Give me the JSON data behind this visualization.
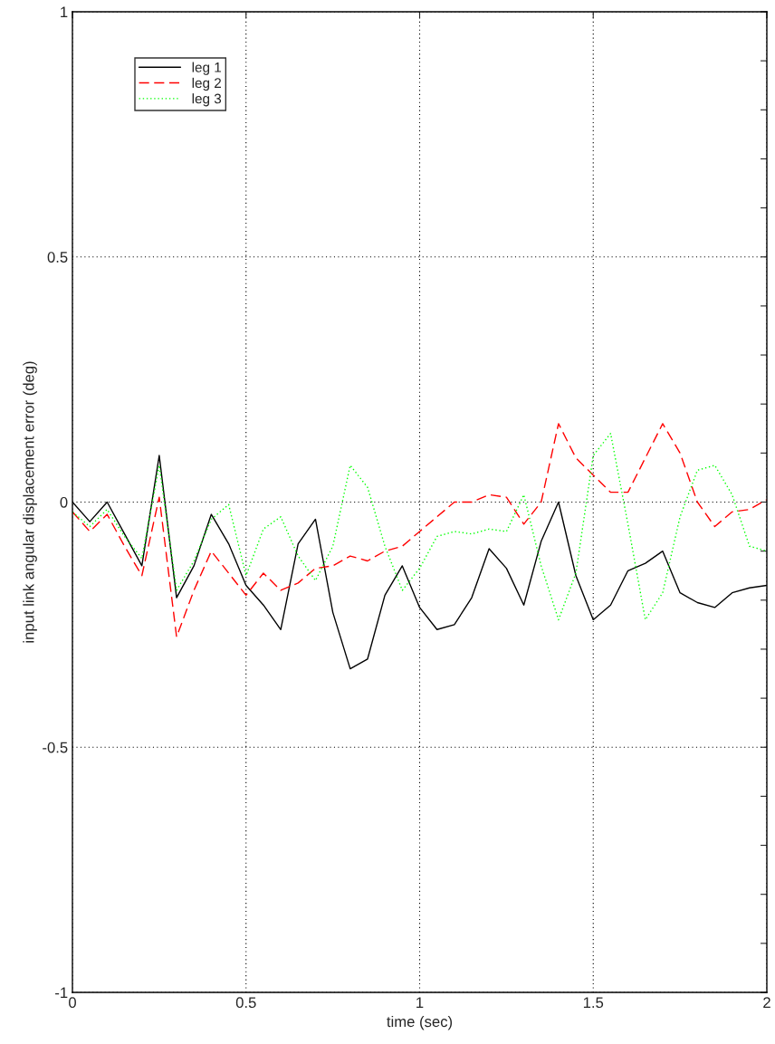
{
  "chart_data": {
    "type": "line",
    "xlabel": "time (sec)",
    "ylabel": "input link angular displacement error (deg)",
    "x": [
      0,
      0.05,
      0.1,
      0.15,
      0.2,
      0.25,
      0.3,
      0.35,
      0.4,
      0.45,
      0.5,
      0.55,
      0.6,
      0.65,
      0.7,
      0.75,
      0.8,
      0.85,
      0.9,
      0.95,
      1.0,
      1.05,
      1.1,
      1.15,
      1.2,
      1.25,
      1.3,
      1.35,
      1.4,
      1.45,
      1.5,
      1.55,
      1.6,
      1.65,
      1.7,
      1.75,
      1.8,
      1.85,
      1.9,
      1.95,
      2.0
    ],
    "series": [
      {
        "name": "leg 1",
        "color": "#000000",
        "line_style": "solid",
        "values": [
          0,
          -0.04,
          0.0,
          -0.065,
          -0.13,
          0.095,
          -0.195,
          -0.13,
          -0.025,
          -0.085,
          -0.17,
          -0.21,
          -0.26,
          -0.085,
          -0.035,
          -0.225,
          -0.34,
          -0.32,
          -0.19,
          -0.13,
          -0.215,
          -0.26,
          -0.25,
          -0.195,
          -0.095,
          -0.135,
          -0.21,
          -0.08,
          0.0,
          -0.15,
          -0.24,
          -0.21,
          -0.14,
          -0.125,
          -0.1,
          -0.185,
          -0.205,
          -0.215,
          -0.185,
          -0.175,
          -0.17
        ]
      },
      {
        "name": "leg 2",
        "color": "#ff0000",
        "line_style": "dashed",
        "values": [
          -0.02,
          -0.06,
          -0.025,
          -0.09,
          -0.15,
          0.01,
          -0.275,
          -0.18,
          -0.1,
          -0.145,
          -0.19,
          -0.145,
          -0.18,
          -0.165,
          -0.135,
          -0.13,
          -0.11,
          -0.12,
          -0.1,
          -0.09,
          -0.06,
          -0.03,
          0.0,
          0.0,
          0.015,
          0.01,
          -0.045,
          0.0,
          0.16,
          0.09,
          0.055,
          0.02,
          0.02,
          0.09,
          0.16,
          0.1,
          0.0,
          -0.05,
          -0.02,
          -0.015,
          0.005
        ]
      },
      {
        "name": "leg 3",
        "color": "#00ff00",
        "line_style": "dotted",
        "values": [
          -0.02,
          -0.05,
          -0.015,
          -0.07,
          -0.115,
          0.075,
          -0.18,
          -0.12,
          -0.035,
          -0.005,
          -0.15,
          -0.055,
          -0.03,
          -0.11,
          -0.16,
          -0.09,
          0.075,
          0.03,
          -0.09,
          -0.18,
          -0.135,
          -0.07,
          -0.06,
          -0.065,
          -0.055,
          -0.06,
          0.015,
          -0.13,
          -0.24,
          -0.145,
          0.095,
          0.14,
          -0.045,
          -0.24,
          -0.185,
          -0.03,
          0.065,
          0.075,
          0.015,
          -0.09,
          -0.1
        ]
      }
    ],
    "xlim": [
      0,
      2
    ],
    "xticks": [
      0,
      0.5,
      1,
      1.5,
      2
    ],
    "ylim": [
      -1,
      1
    ],
    "yticks": [
      -1,
      {
        "value": -0.9,
        "label": null
      },
      {
        "value": -0.8,
        "label": null
      },
      {
        "value": -0.7,
        "label": null
      },
      {
        "value": -0.6,
        "label": null
      },
      -0.5,
      {
        "value": -0.4,
        "label": null
      },
      {
        "value": -0.3,
        "label": null
      },
      {
        "value": -0.2,
        "label": null
      },
      {
        "value": -0.1,
        "label": null
      },
      0,
      {
        "value": 0.1,
        "label": null
      },
      {
        "value": 0.2,
        "label": null
      },
      {
        "value": 0.3,
        "label": null
      },
      {
        "value": 0.4,
        "label": null
      },
      0.5,
      {
        "value": 0.6,
        "label": null
      },
      {
        "value": 0.7,
        "label": null
      },
      {
        "value": 0.8,
        "label": null
      },
      {
        "value": 0.9,
        "label": null
      },
      1
    ],
    "grid": true,
    "legend": "top left"
  }
}
